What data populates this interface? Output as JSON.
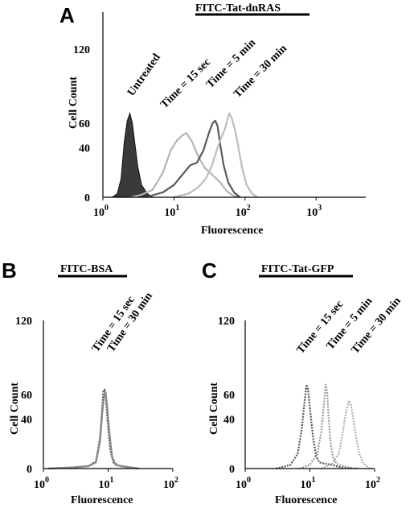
{
  "chart_data": [
    {
      "panel": "A",
      "title": "FITC-Tat-dnRAS",
      "type": "area",
      "xlabel": "Fluorescence",
      "ylabel": "Cell Count",
      "x_scale": "log",
      "xlim": [
        1,
        5000
      ],
      "ylim": [
        0,
        150
      ],
      "x_ticks": [
        {
          "base": "10",
          "exp": "0",
          "value": 1
        },
        {
          "base": "10",
          "exp": "1",
          "value": 10
        },
        {
          "base": "10",
          "exp": "2",
          "value": 100
        },
        {
          "base": "10",
          "exp": "3",
          "value": 1000
        }
      ],
      "y_ticks": [
        0,
        40,
        60,
        120
      ],
      "series": [
        {
          "name": "Untreated",
          "color": "#3a3a3a",
          "filled": true,
          "dashed": false,
          "points": [
            [
              1.35,
              0
            ],
            [
              1.6,
              3
            ],
            [
              1.8,
              15
            ],
            [
              2.0,
              45
            ],
            [
              2.2,
              62
            ],
            [
              2.4,
              68
            ],
            [
              2.6,
              60
            ],
            [
              2.8,
              45
            ],
            [
              3.1,
              25
            ],
            [
              3.5,
              10
            ],
            [
              4.2,
              3
            ],
            [
              5,
              0
            ]
          ]
        },
        {
          "name": "Time = 15 sec",
          "color": "#b5b5b5",
          "filled": false,
          "dashed": false,
          "points": [
            [
              2.5,
              0
            ],
            [
              3.5,
              2
            ],
            [
              5,
              6
            ],
            [
              7,
              20
            ],
            [
              9,
              38
            ],
            [
              11,
              46
            ],
            [
              13,
              50
            ],
            [
              15,
              52
            ],
            [
              18,
              45
            ],
            [
              22,
              33
            ],
            [
              27,
              24
            ],
            [
              32,
              20
            ],
            [
              38,
              16
            ],
            [
              45,
              12
            ],
            [
              55,
              5
            ],
            [
              65,
              2
            ],
            [
              80,
              0
            ]
          ]
        },
        {
          "name": "Time = 5 min",
          "color": "#5a5a5a",
          "filled": false,
          "dashed": false,
          "points": [
            [
              4,
              0
            ],
            [
              7,
              4
            ],
            [
              10,
              10
            ],
            [
              13,
              18
            ],
            [
              17,
              26
            ],
            [
              21,
              28
            ],
            [
              26,
              38
            ],
            [
              31,
              52
            ],
            [
              35,
              60
            ],
            [
              38,
              62
            ],
            [
              41,
              58
            ],
            [
              45,
              42
            ],
            [
              50,
              26
            ],
            [
              58,
              12
            ],
            [
              70,
              4
            ],
            [
              85,
              0
            ]
          ]
        },
        {
          "name": "Time = 30 min",
          "color": "#bdbdbd",
          "filled": false,
          "dashed": false,
          "points": [
            [
              10,
              0
            ],
            [
              16,
              3
            ],
            [
              22,
              8
            ],
            [
              28,
              15
            ],
            [
              34,
              25
            ],
            [
              40,
              38
            ],
            [
              46,
              48
            ],
            [
              52,
              55
            ],
            [
              56,
              62
            ],
            [
              60,
              68
            ],
            [
              65,
              64
            ],
            [
              72,
              55
            ],
            [
              80,
              42
            ],
            [
              90,
              25
            ],
            [
              105,
              10
            ],
            [
              125,
              3
            ],
            [
              150,
              0
            ]
          ]
        }
      ],
      "annotations": [
        "Untreated",
        "Time = 15 sec",
        "Time = 5 min",
        "Time = 30 min"
      ]
    },
    {
      "panel": "B",
      "title": "FITC-BSA",
      "type": "area",
      "xlabel": "Fluorescence",
      "ylabel": "Cell Count",
      "x_scale": "log",
      "xlim": [
        1,
        100
      ],
      "ylim": [
        0,
        120
      ],
      "x_ticks": [
        {
          "base": "10",
          "exp": "0",
          "value": 1
        },
        {
          "base": "10",
          "exp": "1",
          "value": 10
        },
        {
          "base": "10",
          "exp": "2",
          "value": 100
        }
      ],
      "y_ticks": [
        0,
        40,
        60,
        120
      ],
      "series": [
        {
          "name": "Time = 15 sec",
          "color": "#555555",
          "filled": false,
          "dashed": true,
          "points": [
            [
              1.2,
              0
            ],
            [
              3,
              1
            ],
            [
              5,
              2
            ],
            [
              6.5,
              6
            ],
            [
              7.5,
              25
            ],
            [
              8,
              45
            ],
            [
              8.4,
              62
            ],
            [
              8.8,
              64
            ],
            [
              9.2,
              58
            ],
            [
              9.8,
              38
            ],
            [
              10.8,
              15
            ],
            [
              12,
              5
            ],
            [
              15,
              2
            ],
            [
              20,
              1
            ],
            [
              30,
              0
            ]
          ]
        },
        {
          "name": "Time = 30 min",
          "color": "#888888",
          "filled": false,
          "dashed": false,
          "points": [
            [
              1.2,
              0
            ],
            [
              3,
              1
            ],
            [
              5,
              2
            ],
            [
              6.5,
              5
            ],
            [
              7.5,
              22
            ],
            [
              8.2,
              48
            ],
            [
              8.7,
              60
            ],
            [
              9.1,
              62
            ],
            [
              9.6,
              52
            ],
            [
              10.4,
              30
            ],
            [
              11.5,
              10
            ],
            [
              13,
              3
            ],
            [
              16,
              2
            ],
            [
              22,
              1
            ],
            [
              30,
              0
            ]
          ]
        }
      ],
      "annotations": [
        "Time = 15 sec",
        "Time = 30 min"
      ]
    },
    {
      "panel": "C",
      "title": "FITC-Tat-GFP",
      "type": "area",
      "xlabel": "Fluorescence",
      "ylabel": "Cell Count",
      "x_scale": "log",
      "xlim": [
        1,
        100
      ],
      "ylim": [
        0,
        120
      ],
      "x_ticks": [
        {
          "base": "10",
          "exp": "0",
          "value": 1
        },
        {
          "base": "10",
          "exp": "1",
          "value": 10
        },
        {
          "base": "10",
          "exp": "2",
          "value": 100
        }
      ],
      "y_ticks": [
        0,
        40,
        60,
        120
      ],
      "series": [
        {
          "name": "Time = 15 sec",
          "color": "#555555",
          "filled": false,
          "dashed": true,
          "points": [
            [
              3,
              0
            ],
            [
              5,
              3
            ],
            [
              6.5,
              12
            ],
            [
              7.5,
              32
            ],
            [
              8.3,
              55
            ],
            [
              8.9,
              68
            ],
            [
              9.4,
              64
            ],
            [
              10.2,
              45
            ],
            [
              11.2,
              25
            ],
            [
              12.5,
              10
            ],
            [
              14,
              5
            ],
            [
              17,
              4
            ],
            [
              22,
              3
            ],
            [
              30,
              1
            ],
            [
              45,
              0
            ]
          ]
        },
        {
          "name": "Time = 5 min",
          "color": "#999999",
          "filled": false,
          "dashed": true,
          "points": [
            [
              7,
              0
            ],
            [
              10,
              3
            ],
            [
              13,
              12
            ],
            [
              15,
              30
            ],
            [
              16.5,
              52
            ],
            [
              17.5,
              68
            ],
            [
              18.5,
              62
            ],
            [
              19.5,
              42
            ],
            [
              21,
              20
            ],
            [
              23,
              8
            ],
            [
              26,
              4
            ],
            [
              32,
              2
            ],
            [
              40,
              1
            ],
            [
              55,
              0
            ]
          ]
        },
        {
          "name": "Time = 30 min",
          "color": "#b0b0b0",
          "filled": false,
          "dashed": true,
          "points": [
            [
              15,
              0
            ],
            [
              22,
              4
            ],
            [
              28,
              12
            ],
            [
              32,
              28
            ],
            [
              35,
              42
            ],
            [
              38,
              50
            ],
            [
              40,
              55
            ],
            [
              43,
              52
            ],
            [
              47,
              40
            ],
            [
              52,
              25
            ],
            [
              58,
              12
            ],
            [
              66,
              5
            ],
            [
              75,
              2
            ],
            [
              85,
              0
            ]
          ]
        }
      ],
      "annotations": [
        "Time = 15 sec",
        "Time = 5 min",
        "Time = 30 min"
      ]
    }
  ]
}
